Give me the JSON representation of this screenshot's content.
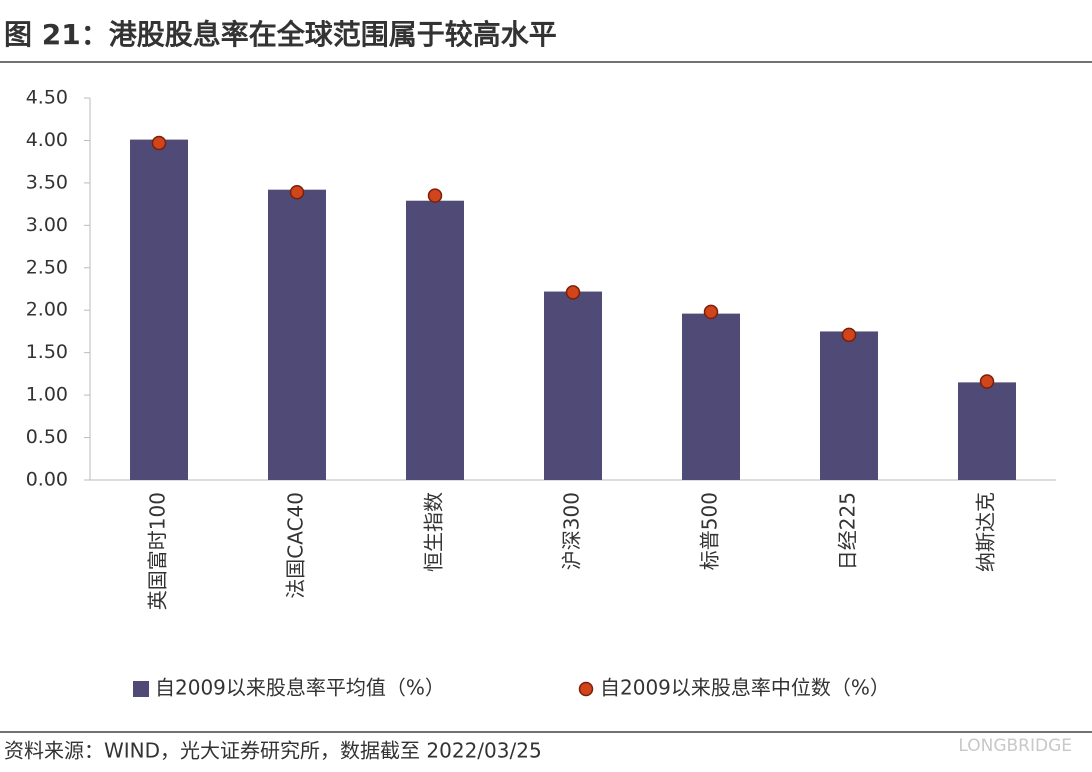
{
  "chart_data": {
    "type": "bar",
    "title": "图 21：港股股息率在全球范围属于较高水平",
    "source": "资料来源：WIND，光大证券研究所，数据截至 2022/03/25",
    "watermark": "LONGBRIDGE",
    "categories": [
      "英国富时100",
      "法国CAC40",
      "恒生指数",
      "沪深300",
      "标普500",
      "日经225",
      "纳斯达克"
    ],
    "series": [
      {
        "name": "自2009以来股息率平均值（%）",
        "type": "bar",
        "color": "#504a76",
        "values": [
          4.01,
          3.42,
          3.29,
          2.22,
          1.96,
          1.75,
          1.15
        ]
      },
      {
        "name": "自2009以来股息率中位数（%）",
        "type": "scatter",
        "color": "#d1451c",
        "values": [
          3.97,
          3.39,
          3.35,
          2.21,
          1.98,
          1.71,
          1.16
        ]
      }
    ],
    "ylim": [
      0,
      4.5
    ],
    "yticks": [
      {
        "value": 0,
        "label": "0.00"
      },
      {
        "value": 0.5,
        "label": "0.50"
      },
      {
        "value": 1,
        "label": "1.00"
      },
      {
        "value": 1.5,
        "label": "1.50"
      },
      {
        "value": 2,
        "label": "2.00"
      },
      {
        "value": 2.5,
        "label": "2.50"
      },
      {
        "value": 3,
        "label": "3.00"
      },
      {
        "value": 3.5,
        "label": "3.50"
      },
      {
        "value": 4,
        "label": "4.00"
      },
      {
        "value": 4.5,
        "label": "4.50"
      }
    ],
    "grid": false
  }
}
